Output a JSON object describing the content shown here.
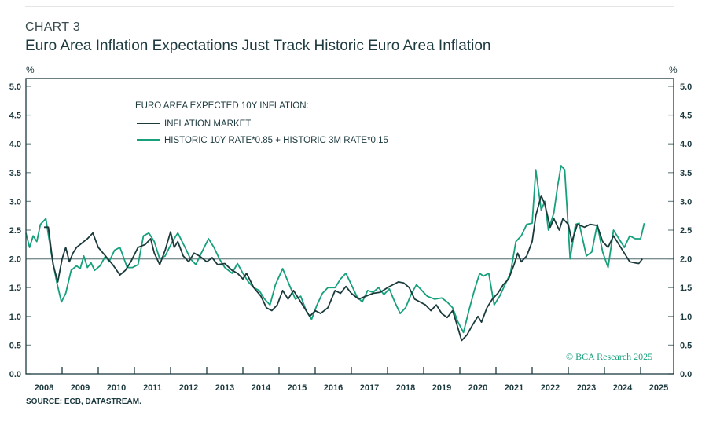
{
  "header": {
    "chart_number": "CHART 3",
    "title": "Euro Area Inflation Expectations Just Track Historic Euro Area Inflation"
  },
  "footer": {
    "source": "SOURCE: ECB, DATASTREAM.",
    "watermark": "© BCA Research 2025"
  },
  "colors": {
    "market": "#1b3a3c",
    "historic": "#16a07c",
    "axis": "#1d3a3f",
    "refline": "#7d9091"
  },
  "chart_data": {
    "type": "line",
    "title": "Euro Area Inflation Expectations Just Track Historic Euro Area Inflation",
    "ylabel_left": "%",
    "ylabel_right": "%",
    "ylim": [
      0,
      5.0
    ],
    "xlim": [
      2008,
      2025.4
    ],
    "yticks": [
      "0.0",
      "0.5",
      "1.0",
      "1.5",
      "2.0",
      "2.5",
      "3.0",
      "3.5",
      "4.0",
      "4.5",
      "5.0"
    ],
    "xticks": [
      "2008",
      "2009",
      "2010",
      "2011",
      "2012",
      "2013",
      "2014",
      "2015",
      "2016",
      "2017",
      "2018",
      "2019",
      "2020",
      "2021",
      "2022",
      "2023",
      "2024",
      "2025"
    ],
    "reference_line": 2.0,
    "legend_title": "EURO AREA EXPECTED 10Y INFLATION:",
    "legend_position": "top-left",
    "series": [
      {
        "name": "INFLATION MARKET",
        "color": "#1b3a3c",
        "points": [
          [
            2008.5,
            2.55
          ],
          [
            2008.62,
            2.55
          ],
          [
            2008.75,
            1.9
          ],
          [
            2008.88,
            1.6
          ],
          [
            2009.0,
            2.0
          ],
          [
            2009.1,
            2.2
          ],
          [
            2009.2,
            1.95
          ],
          [
            2009.3,
            2.1
          ],
          [
            2009.4,
            2.2
          ],
          [
            2009.5,
            2.25
          ],
          [
            2009.6,
            2.3
          ],
          [
            2009.7,
            2.35
          ],
          [
            2009.85,
            2.45
          ],
          [
            2010.0,
            2.2
          ],
          [
            2010.2,
            2.05
          ],
          [
            2010.4,
            1.9
          ],
          [
            2010.6,
            1.72
          ],
          [
            2010.75,
            1.8
          ],
          [
            2010.9,
            1.95
          ],
          [
            2011.1,
            2.2
          ],
          [
            2011.3,
            2.25
          ],
          [
            2011.45,
            2.35
          ],
          [
            2011.55,
            2.1
          ],
          [
            2011.7,
            1.9
          ],
          [
            2011.85,
            2.15
          ],
          [
            2012.0,
            2.47
          ],
          [
            2012.1,
            2.2
          ],
          [
            2012.2,
            2.3
          ],
          [
            2012.35,
            2.05
          ],
          [
            2012.5,
            1.95
          ],
          [
            2012.65,
            2.1
          ],
          [
            2012.8,
            2.05
          ],
          [
            2013.0,
            1.95
          ],
          [
            2013.15,
            2.02
          ],
          [
            2013.3,
            1.9
          ],
          [
            2013.5,
            1.92
          ],
          [
            2013.7,
            1.8
          ],
          [
            2013.85,
            1.75
          ],
          [
            2014.0,
            1.65
          ],
          [
            2014.1,
            1.75
          ],
          [
            2014.3,
            1.5
          ],
          [
            2014.5,
            1.35
          ],
          [
            2014.65,
            1.15
          ],
          [
            2014.8,
            1.1
          ],
          [
            2014.95,
            1.2
          ],
          [
            2015.1,
            1.45
          ],
          [
            2015.25,
            1.3
          ],
          [
            2015.4,
            1.45
          ],
          [
            2015.55,
            1.3
          ],
          [
            2015.7,
            1.15
          ],
          [
            2015.85,
            1.0
          ],
          [
            2016.0,
            1.1
          ],
          [
            2016.15,
            1.05
          ],
          [
            2016.35,
            1.15
          ],
          [
            2016.55,
            1.45
          ],
          [
            2016.7,
            1.4
          ],
          [
            2016.85,
            1.52
          ],
          [
            2017.0,
            1.4
          ],
          [
            2017.2,
            1.3
          ],
          [
            2017.4,
            1.35
          ],
          [
            2017.6,
            1.4
          ],
          [
            2017.8,
            1.42
          ],
          [
            2018.0,
            1.5
          ],
          [
            2018.15,
            1.55
          ],
          [
            2018.3,
            1.6
          ],
          [
            2018.45,
            1.58
          ],
          [
            2018.6,
            1.5
          ],
          [
            2018.75,
            1.3
          ],
          [
            2018.9,
            1.25
          ],
          [
            2019.05,
            1.2
          ],
          [
            2019.2,
            1.1
          ],
          [
            2019.35,
            1.2
          ],
          [
            2019.5,
            1.05
          ],
          [
            2019.65,
            0.98
          ],
          [
            2019.8,
            1.1
          ],
          [
            2019.9,
            0.9
          ],
          [
            2020.05,
            0.58
          ],
          [
            2020.2,
            0.68
          ],
          [
            2020.35,
            0.85
          ],
          [
            2020.5,
            1.0
          ],
          [
            2020.6,
            0.9
          ],
          [
            2020.75,
            1.15
          ],
          [
            2020.9,
            1.3
          ],
          [
            2021.05,
            1.4
          ],
          [
            2021.2,
            1.55
          ],
          [
            2021.35,
            1.65
          ],
          [
            2021.5,
            1.9
          ],
          [
            2021.6,
            2.1
          ],
          [
            2021.7,
            1.95
          ],
          [
            2021.85,
            2.05
          ],
          [
            2022.0,
            2.3
          ],
          [
            2022.1,
            2.75
          ],
          [
            2022.25,
            3.1
          ],
          [
            2022.35,
            2.95
          ],
          [
            2022.5,
            2.55
          ],
          [
            2022.6,
            2.7
          ],
          [
            2022.75,
            2.5
          ],
          [
            2022.85,
            2.7
          ],
          [
            2023.0,
            2.6
          ],
          [
            2023.1,
            2.3
          ],
          [
            2023.25,
            2.6
          ],
          [
            2023.45,
            2.55
          ],
          [
            2023.6,
            2.6
          ],
          [
            2023.8,
            2.58
          ],
          [
            2023.95,
            2.3
          ],
          [
            2024.1,
            2.2
          ],
          [
            2024.25,
            2.4
          ],
          [
            2024.4,
            2.25
          ],
          [
            2024.55,
            2.1
          ],
          [
            2024.7,
            1.95
          ],
          [
            2024.85,
            1.93
          ],
          [
            2024.95,
            1.92
          ],
          [
            2025.05,
            2.0
          ]
        ]
      },
      {
        "name": "HISTORIC 10Y RATE*0.85 + HISTORIC 3M RATE*0.15",
        "color": "#16a07c",
        "points": [
          [
            2008.0,
            2.45
          ],
          [
            2008.1,
            2.2
          ],
          [
            2008.2,
            2.4
          ],
          [
            2008.3,
            2.3
          ],
          [
            2008.4,
            2.6
          ],
          [
            2008.55,
            2.7
          ],
          [
            2008.7,
            2.1
          ],
          [
            2008.85,
            1.6
          ],
          [
            2008.98,
            1.25
          ],
          [
            2009.1,
            1.4
          ],
          [
            2009.25,
            1.8
          ],
          [
            2009.4,
            1.88
          ],
          [
            2009.5,
            1.83
          ],
          [
            2009.6,
            2.05
          ],
          [
            2009.7,
            1.85
          ],
          [
            2009.8,
            1.93
          ],
          [
            2009.9,
            1.8
          ],
          [
            2010.05,
            1.88
          ],
          [
            2010.2,
            2.05
          ],
          [
            2010.3,
            1.95
          ],
          [
            2010.45,
            2.15
          ],
          [
            2010.6,
            2.2
          ],
          [
            2010.8,
            1.85
          ],
          [
            2010.95,
            1.85
          ],
          [
            2011.1,
            1.9
          ],
          [
            2011.25,
            2.4
          ],
          [
            2011.4,
            2.45
          ],
          [
            2011.55,
            2.3
          ],
          [
            2011.7,
            2.0
          ],
          [
            2011.85,
            2.05
          ],
          [
            2012.05,
            2.3
          ],
          [
            2012.2,
            2.45
          ],
          [
            2012.4,
            2.2
          ],
          [
            2012.55,
            2.0
          ],
          [
            2012.7,
            1.9
          ],
          [
            2012.85,
            2.1
          ],
          [
            2013.05,
            2.35
          ],
          [
            2013.2,
            2.2
          ],
          [
            2013.35,
            2.0
          ],
          [
            2013.5,
            1.85
          ],
          [
            2013.7,
            1.75
          ],
          [
            2013.85,
            1.92
          ],
          [
            2014.0,
            1.75
          ],
          [
            2014.15,
            1.6
          ],
          [
            2014.3,
            1.5
          ],
          [
            2014.45,
            1.45
          ],
          [
            2014.6,
            1.3
          ],
          [
            2014.75,
            1.2
          ],
          [
            2014.9,
            1.55
          ],
          [
            2015.1,
            1.83
          ],
          [
            2015.25,
            1.6
          ],
          [
            2015.45,
            1.3
          ],
          [
            2015.6,
            1.35
          ],
          [
            2015.75,
            1.1
          ],
          [
            2015.9,
            0.95
          ],
          [
            2016.05,
            1.2
          ],
          [
            2016.2,
            1.4
          ],
          [
            2016.35,
            1.5
          ],
          [
            2016.55,
            1.5
          ],
          [
            2016.7,
            1.65
          ],
          [
            2016.85,
            1.75
          ],
          [
            2017.0,
            1.55
          ],
          [
            2017.15,
            1.35
          ],
          [
            2017.3,
            1.25
          ],
          [
            2017.45,
            1.45
          ],
          [
            2017.6,
            1.42
          ],
          [
            2017.75,
            1.5
          ],
          [
            2017.9,
            1.38
          ],
          [
            2018.05,
            1.48
          ],
          [
            2018.2,
            1.25
          ],
          [
            2018.35,
            1.05
          ],
          [
            2018.5,
            1.15
          ],
          [
            2018.65,
            1.38
          ],
          [
            2018.8,
            1.55
          ],
          [
            2018.95,
            1.45
          ],
          [
            2019.1,
            1.35
          ],
          [
            2019.3,
            1.3
          ],
          [
            2019.5,
            1.32
          ],
          [
            2019.65,
            1.25
          ],
          [
            2019.8,
            1.15
          ],
          [
            2019.95,
            0.9
          ],
          [
            2020.1,
            0.72
          ],
          [
            2020.25,
            1.1
          ],
          [
            2020.4,
            1.45
          ],
          [
            2020.55,
            1.75
          ],
          [
            2020.65,
            1.7
          ],
          [
            2020.8,
            1.75
          ],
          [
            2020.95,
            1.2
          ],
          [
            2021.1,
            1.35
          ],
          [
            2021.25,
            1.55
          ],
          [
            2021.4,
            1.75
          ],
          [
            2021.55,
            2.3
          ],
          [
            2021.7,
            2.4
          ],
          [
            2021.85,
            2.6
          ],
          [
            2022.0,
            2.62
          ],
          [
            2022.1,
            3.55
          ],
          [
            2022.25,
            2.85
          ],
          [
            2022.35,
            3.0
          ],
          [
            2022.45,
            2.5
          ],
          [
            2022.6,
            2.8
          ],
          [
            2022.7,
            3.25
          ],
          [
            2022.8,
            3.62
          ],
          [
            2022.9,
            3.55
          ],
          [
            2023.05,
            2.0
          ],
          [
            2023.2,
            2.6
          ],
          [
            2023.3,
            2.62
          ],
          [
            2023.5,
            2.05
          ],
          [
            2023.65,
            2.12
          ],
          [
            2023.8,
            2.6
          ],
          [
            2023.95,
            2.12
          ],
          [
            2024.1,
            1.85
          ],
          [
            2024.25,
            2.5
          ],
          [
            2024.4,
            2.35
          ],
          [
            2024.55,
            2.2
          ],
          [
            2024.7,
            2.4
          ],
          [
            2024.85,
            2.35
          ],
          [
            2025.0,
            2.35
          ],
          [
            2025.1,
            2.62
          ]
        ]
      }
    ]
  }
}
